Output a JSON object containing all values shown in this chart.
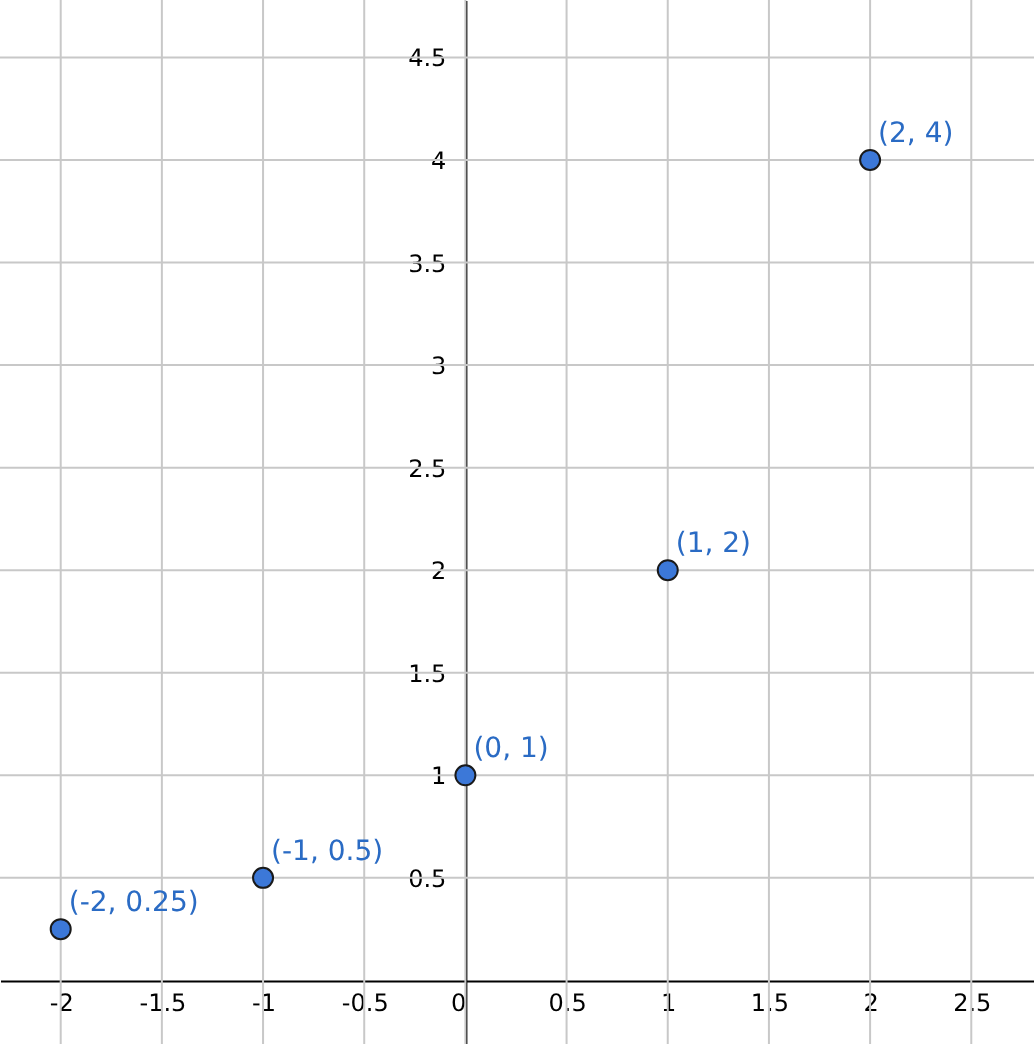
{
  "chart_data": {
    "type": "scatter",
    "x": [
      -2,
      -1,
      0,
      1,
      2
    ],
    "series": [
      {
        "color": "#3c78d8",
        "values": [
          0.25,
          0.5,
          1,
          2,
          4
        ]
      }
    ],
    "xlim": [
      -2.3,
      2.81
    ],
    "ylim": [
      -0.31,
      4.78
    ],
    "xticks": [
      -2,
      -1.5,
      -1,
      -0.5,
      0,
      0.5,
      1,
      1.5,
      2,
      2.5
    ],
    "yticks": [
      0.5,
      1,
      1.5,
      2,
      2.5,
      3,
      3.5,
      4,
      4.5
    ],
    "grid": true,
    "marker": "circle",
    "annotations": [
      {
        "text": "(-2, 0.25)",
        "x": -2,
        "y": 0.25
      },
      {
        "text": "(-1, 0.5)",
        "x": -1,
        "y": 0.5
      },
      {
        "text": "(0, 1)",
        "x": 0,
        "y": 1
      },
      {
        "text": "(1, 2)",
        "x": 1,
        "y": 2
      },
      {
        "text": "(2, 4)",
        "x": 2,
        "y": 4
      }
    ]
  }
}
